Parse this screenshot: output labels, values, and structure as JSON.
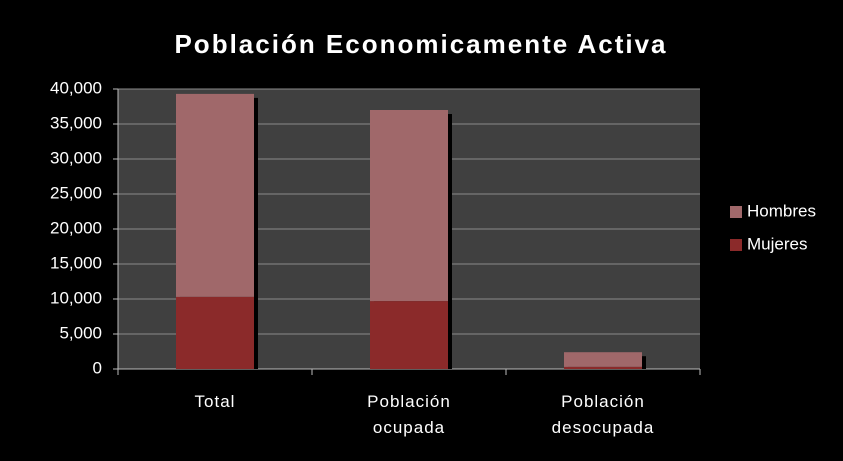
{
  "chart_data": {
    "type": "stacked_bar",
    "title": "Población Economicamente Activa",
    "categories": [
      "Total",
      "Población ocupada",
      "Población desocupada"
    ],
    "series": [
      {
        "name": "Mujeres",
        "color": "#8b2a2a",
        "values": [
          10300,
          9700,
          300
        ]
      },
      {
        "name": "Hombres",
        "color": "#a0686a",
        "values": [
          29000,
          27300,
          2100
        ]
      }
    ],
    "ylim": [
      0,
      40000
    ],
    "yticks": [
      0,
      {
        "value": 5000,
        "label": "5,000"
      },
      {
        "value": 10000,
        "label": "10,000"
      },
      {
        "value": 15000,
        "label": "15,000"
      },
      {
        "value": 20000,
        "label": "20,000"
      },
      {
        "value": 25000,
        "label": "25,000"
      },
      {
        "value": 30000,
        "label": "30,000"
      },
      {
        "value": 35000,
        "label": "35,000"
      },
      {
        "value": 40000,
        "label": "40,000"
      }
    ],
    "grid": true,
    "legend": "right"
  }
}
